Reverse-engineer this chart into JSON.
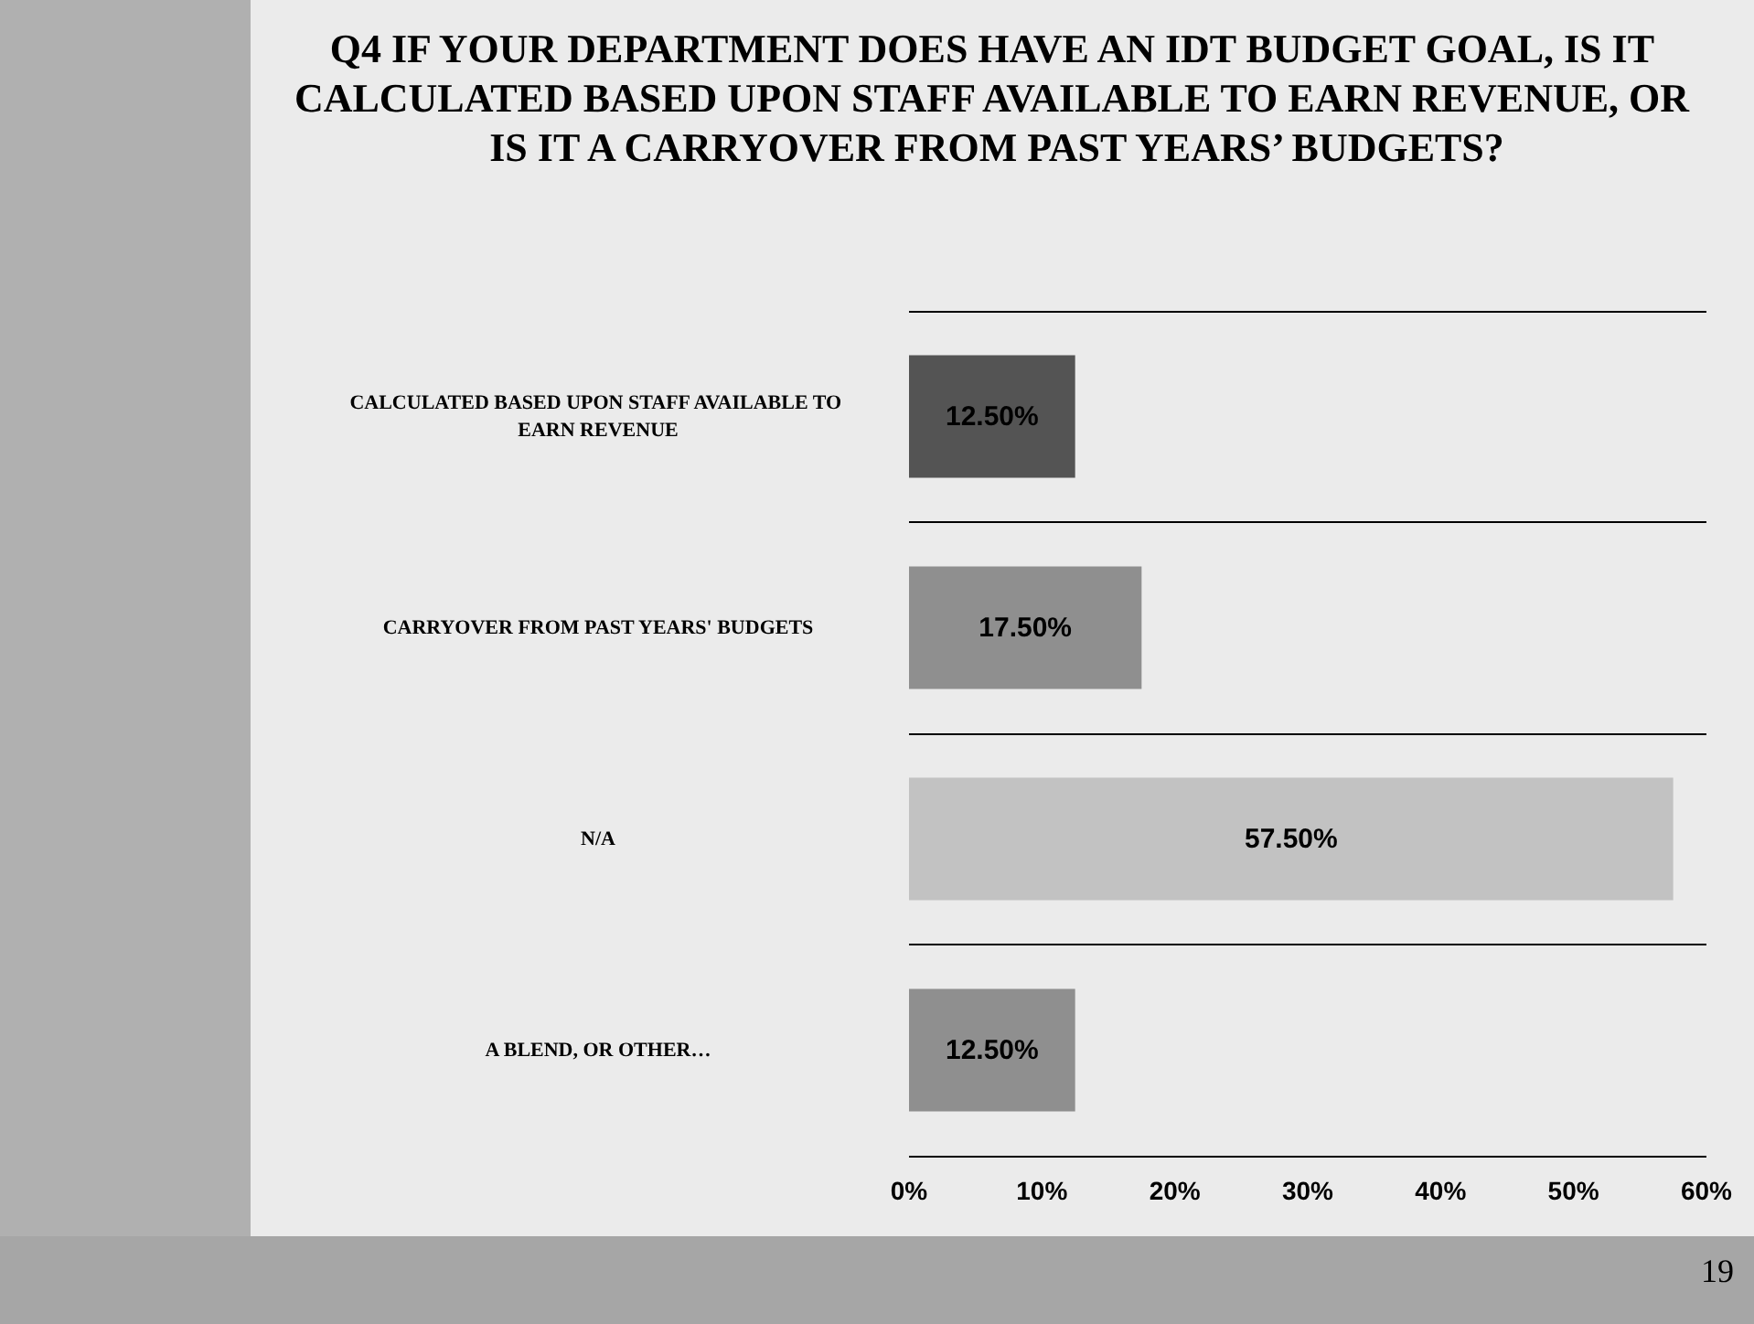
{
  "chart_data": {
    "type": "bar",
    "orientation": "horizontal",
    "title": "Q4 IF YOUR DEPARTMENT DOES HAVE AN IDT BUDGET GOAL, IS IT CALCULATED BASED UPON STAFF AVAILABLE TO EARN REVENUE, OR IS IT A CARRYOVER FROM PAST YEARS’ BUDGETS?",
    "categories": [
      "CALCULATED BASED UPON STAFF AVAILABLE TO EARN REVENUE",
      "CARRYOVER FROM PAST YEARS' BUDGETS",
      "N/A",
      "A BLEND, OR OTHER…"
    ],
    "values": [
      12.5,
      17.5,
      57.5,
      12.5
    ],
    "colors": [
      "#545454",
      "#8f8f8f",
      "#c2c2c2",
      "#8f8f8f"
    ],
    "value_labels": [
      "12.50%",
      "17.50%",
      "57.50%",
      "12.50%"
    ],
    "xlim": [
      0,
      60
    ],
    "xticks": [
      {
        "value": 0,
        "label": "0%"
      },
      {
        "value": 10,
        "label": "10%"
      },
      {
        "value": 20,
        "label": "20%"
      },
      {
        "value": 30,
        "label": "30%"
      },
      {
        "value": 40,
        "label": "40%"
      },
      {
        "value": 50,
        "label": "50%"
      },
      {
        "value": 60,
        "label": "60%"
      }
    ],
    "grid": "y",
    "annotations": [
      "19"
    ]
  }
}
